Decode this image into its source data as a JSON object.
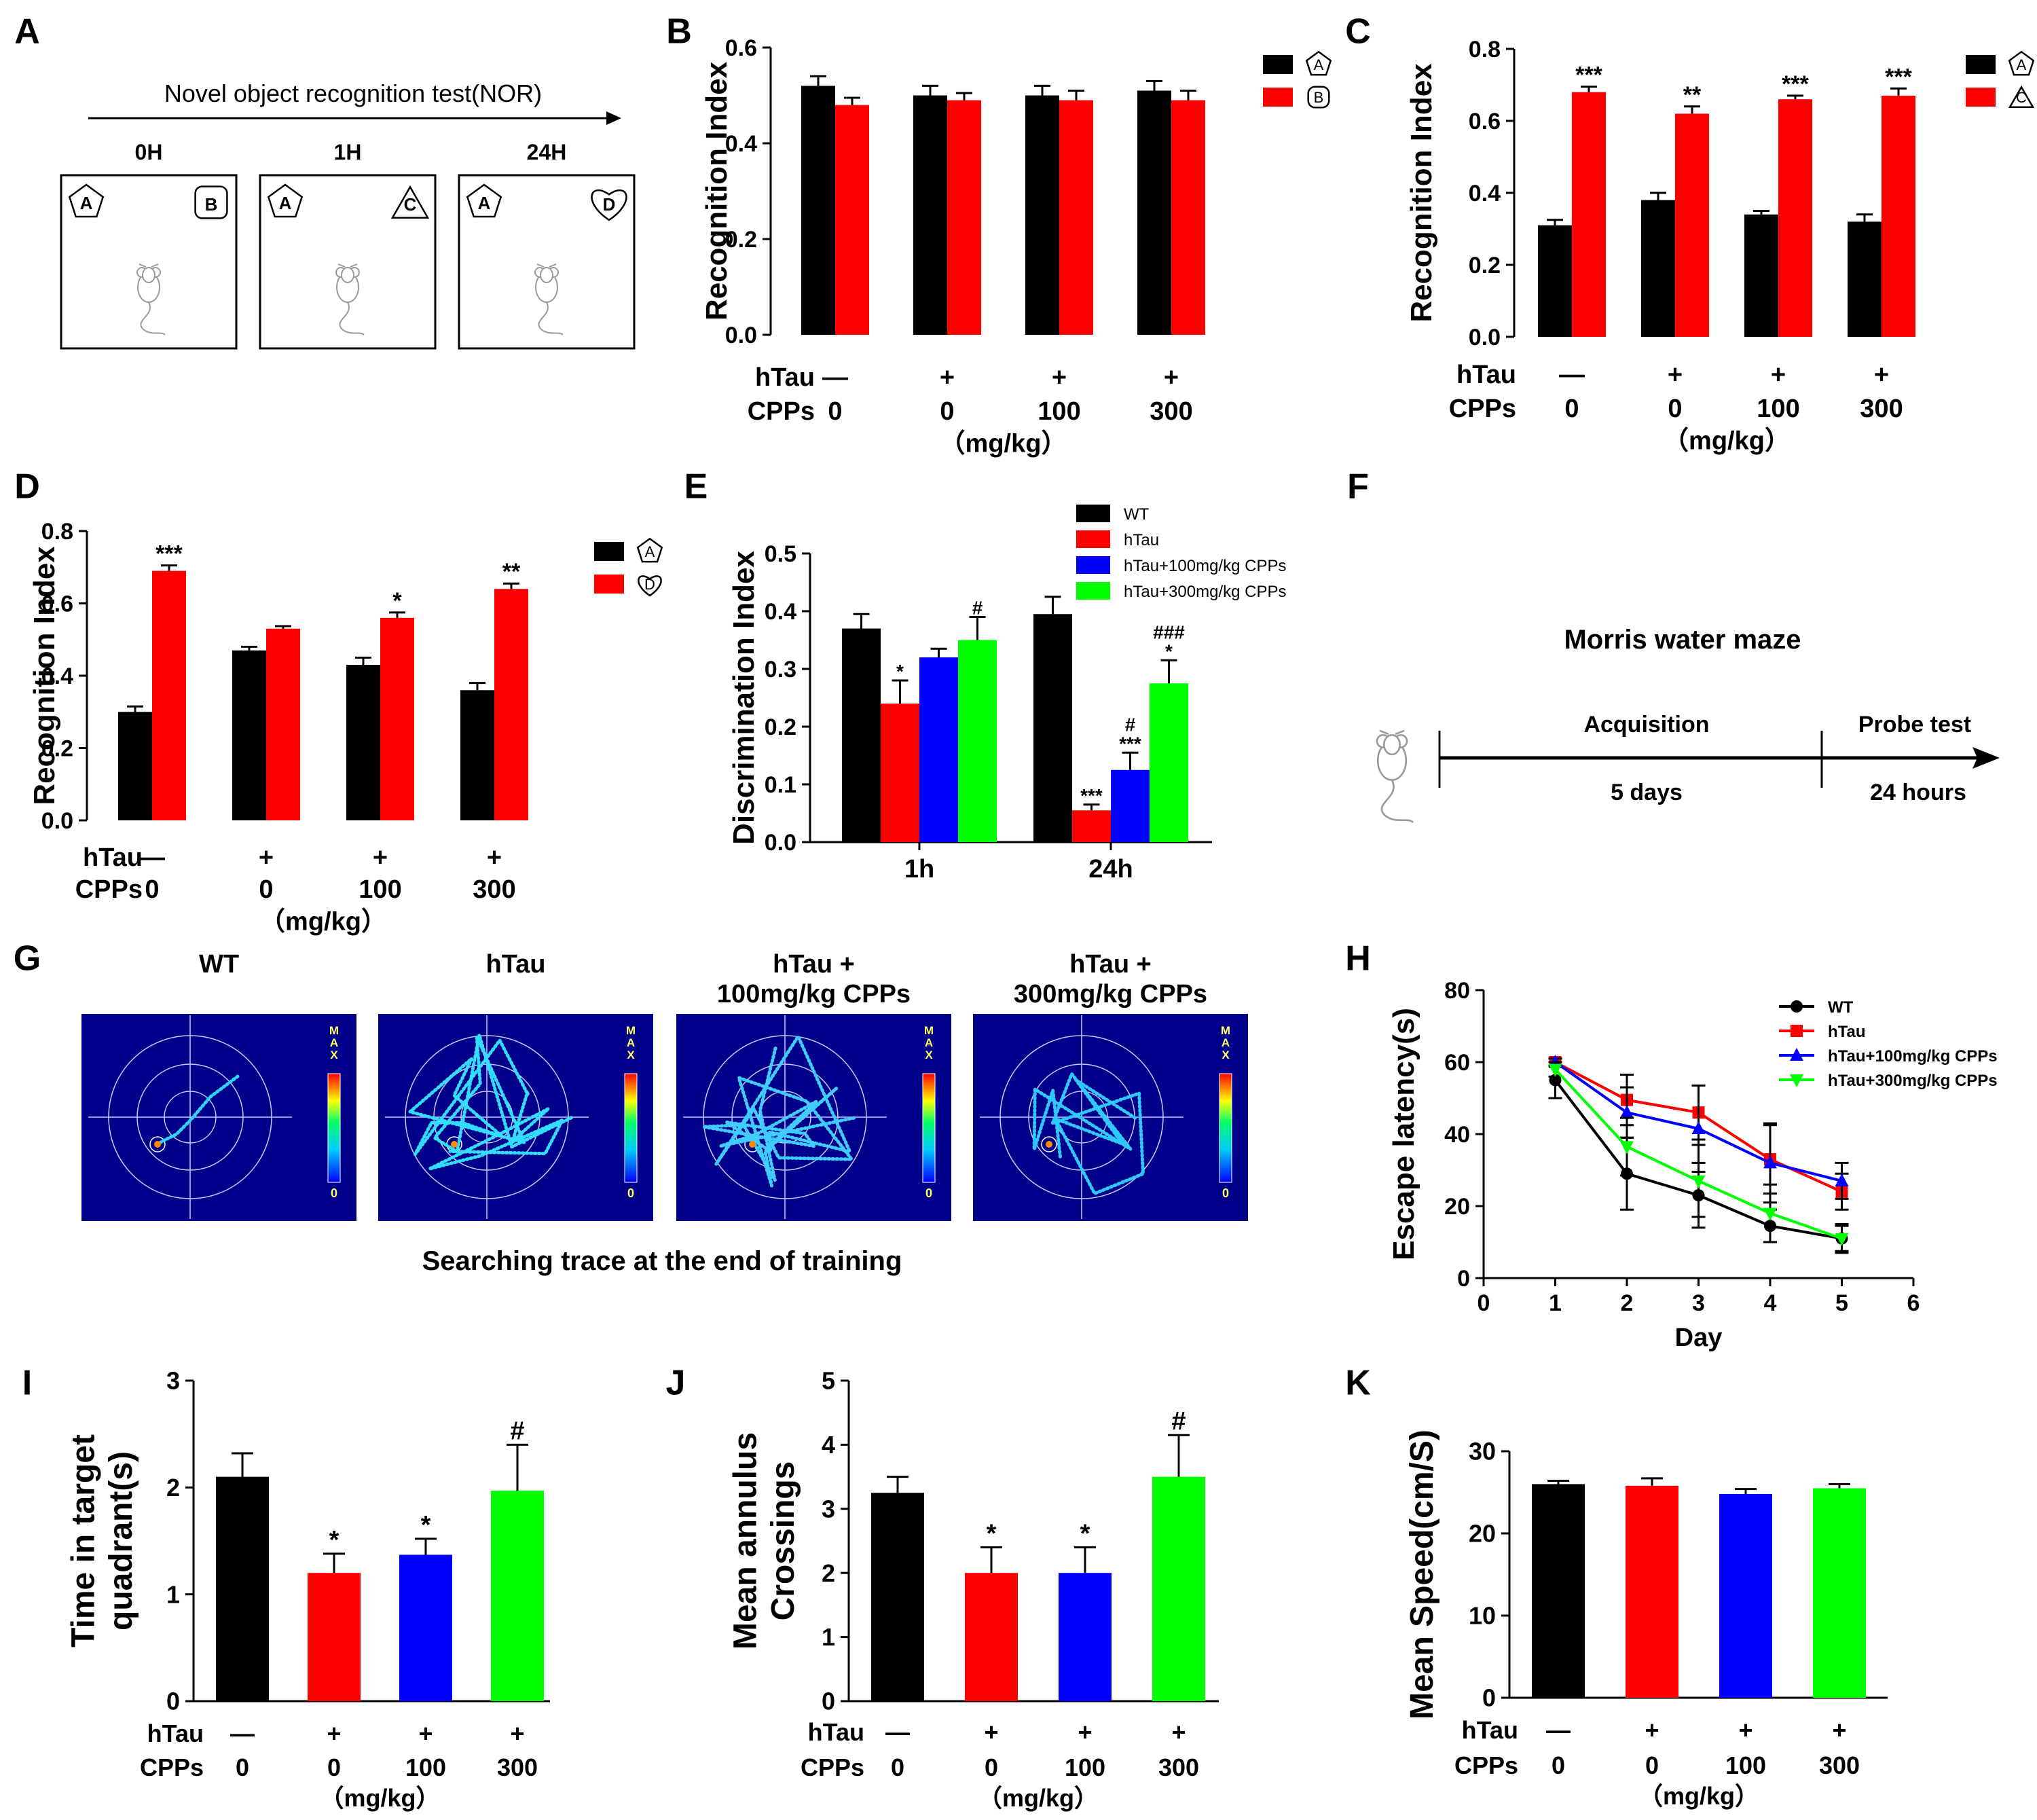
{
  "panel_letters": [
    "A",
    "B",
    "C",
    "D",
    "E",
    "F",
    "G",
    "H",
    "I",
    "J",
    "K"
  ],
  "colors": {
    "black": "#000000",
    "red": "#ff0000",
    "blue": "#0000ff",
    "green": "#00ff00",
    "arena": "#00008b"
  },
  "nor": {
    "title": "Novel object recognition test(NOR)",
    "boxes": [
      {
        "time": "0H",
        "left": "A",
        "right": "B"
      },
      {
        "time": "1H",
        "left": "A",
        "right": "C"
      },
      {
        "time": "24H",
        "left": "A",
        "right": "D"
      }
    ]
  },
  "mwm": {
    "title": "Morris water maze",
    "stage1": "Acquisition",
    "stage1_dur": "5 days",
    "stage2": "Probe test",
    "stage2_dur": "24 hours"
  },
  "traces": {
    "groups": [
      "WT",
      "hTau",
      "hTau +\n100mg/kg CPPs",
      "hTau +\n300mg/kg CPPs"
    ],
    "scale_top": "M\nA\nX",
    "scale_bottom": "0",
    "caption": "Searching trace at the end of training"
  },
  "group_table": {
    "rows": [
      "hTau",
      "CPPs"
    ],
    "htau": [
      "—",
      "+",
      "+",
      "+"
    ],
    "cpps": [
      "0",
      "0",
      "100",
      "300"
    ],
    "unit": "（mg/kg）"
  },
  "chart_data": [
    {
      "id": "B",
      "type": "bar",
      "ylabel": "Recognition Index",
      "ylim": [
        0,
        0.6
      ],
      "yticks": [
        "0.0",
        "0.2",
        "0.4",
        "0.6"
      ],
      "categories": [
        "0",
        "0",
        "100",
        "300"
      ],
      "series": [
        {
          "name": "A",
          "values": [
            0.52,
            0.5,
            0.5,
            0.51
          ],
          "errors": [
            0.02,
            0.02,
            0.02,
            0.02
          ]
        },
        {
          "name": "B",
          "values": [
            0.48,
            0.49,
            0.49,
            0.49
          ],
          "errors": [
            0.015,
            0.015,
            0.02,
            0.02
          ]
        }
      ],
      "annotations": [
        [
          "",
          ""
        ],
        [
          "",
          ""
        ],
        [
          "",
          ""
        ],
        [
          "",
          ""
        ]
      ],
      "legend": [
        "A",
        "B"
      ],
      "show_unit": true
    },
    {
      "id": "C",
      "type": "bar",
      "ylabel": "Recognition Index",
      "ylim": [
        0,
        0.8
      ],
      "yticks": [
        "0.0",
        "0.2",
        "0.4",
        "0.6",
        "0.8"
      ],
      "categories": [
        "0",
        "0",
        "100",
        "300"
      ],
      "series": [
        {
          "name": "A",
          "values": [
            0.31,
            0.38,
            0.34,
            0.32
          ],
          "errors": [
            0.015,
            0.02,
            0.01,
            0.02
          ]
        },
        {
          "name": "C",
          "values": [
            0.68,
            0.62,
            0.66,
            0.67
          ],
          "errors": [
            0.015,
            0.02,
            0.01,
            0.02
          ]
        }
      ],
      "annotations": [
        [
          "",
          "***"
        ],
        [
          "",
          "**"
        ],
        [
          "",
          "***"
        ],
        [
          "",
          "***"
        ]
      ],
      "legend": [
        "A",
        "C"
      ],
      "show_unit": true
    },
    {
      "id": "D",
      "type": "bar",
      "ylabel": "Recognition Index",
      "ylim": [
        0,
        0.8
      ],
      "yticks": [
        "0.0",
        "0.2",
        "0.4",
        "0.6",
        "0.8"
      ],
      "categories": [
        "0",
        "0",
        "100",
        "300"
      ],
      "series": [
        {
          "name": "A",
          "values": [
            0.3,
            0.47,
            0.43,
            0.36
          ],
          "errors": [
            0.015,
            0.01,
            0.02,
            0.02
          ]
        },
        {
          "name": "D",
          "values": [
            0.69,
            0.53,
            0.56,
            0.64
          ],
          "errors": [
            0.015,
            0.007,
            0.015,
            0.015
          ]
        }
      ],
      "annotations": [
        [
          "",
          "***"
        ],
        [
          "",
          ""
        ],
        [
          "",
          "*"
        ],
        [
          "",
          "**"
        ]
      ],
      "legend": [
        "A",
        "D"
      ],
      "show_unit": true
    },
    {
      "id": "E",
      "type": "bar",
      "ylabel": "Discrimination Index",
      "ylim": [
        0,
        0.5
      ],
      "yticks": [
        "0.0",
        "0.1",
        "0.2",
        "0.3",
        "0.4",
        "0.5"
      ],
      "categories": [
        "1h",
        "24h"
      ],
      "series": [
        {
          "name": "WT",
          "values": [
            0.37,
            0.395
          ],
          "errors": [
            0.025,
            0.03
          ]
        },
        {
          "name": "hTau",
          "values": [
            0.24,
            0.055
          ],
          "errors": [
            0.04,
            0.01
          ]
        },
        {
          "name": "hTau+100mg/kg  CPPs",
          "values": [
            0.32,
            0.125
          ],
          "errors": [
            0.015,
            0.03
          ]
        },
        {
          "name": "hTau+300mg/kg  CPPs",
          "values": [
            0.35,
            0.275
          ],
          "errors": [
            0.04,
            0.04
          ]
        }
      ],
      "annotations": [
        [
          "",
          "*",
          "",
          "#"
        ],
        [
          "",
          "***",
          "#\n***",
          "###\n*"
        ]
      ]
    },
    {
      "id": "H",
      "type": "line",
      "xlabel": "Day",
      "ylabel": "Escape latency(s)",
      "xlim": [
        0,
        6
      ],
      "ylim": [
        0,
        80
      ],
      "xticks": [
        "0",
        "1",
        "2",
        "3",
        "4",
        "5",
        "6"
      ],
      "yticks": [
        "0",
        "20",
        "40",
        "60",
        "80"
      ],
      "x": [
        1,
        2,
        3,
        4,
        5
      ],
      "series": [
        {
          "name": "WT",
          "marker": "circle",
          "values": [
            55,
            29,
            23,
            14.5,
            11
          ],
          "errors": [
            5,
            10,
            9,
            4.5,
            3.5
          ]
        },
        {
          "name": "hTau",
          "marker": "square",
          "values": [
            60,
            49.5,
            46,
            33,
            24
          ],
          "errors": [
            1,
            7,
            7.5,
            9.5,
            5
          ]
        },
        {
          "name": "hTau+100mg/kg CPPs",
          "marker": "triangle",
          "values": [
            60,
            46,
            41.5,
            32,
            27
          ],
          "errors": [
            1,
            7,
            12,
            11,
            5
          ]
        },
        {
          "name": "hTau+300mg/kg CPPs",
          "marker": "triangle-down",
          "values": [
            58,
            36.5,
            27,
            18,
            11
          ],
          "errors": [
            2,
            8,
            10,
            8,
            4
          ]
        }
      ]
    },
    {
      "id": "I",
      "type": "bar",
      "ylabel": "Time in target\nquadrant(s)",
      "ylim": [
        0,
        3
      ],
      "yticks": [
        "0",
        "1",
        "2",
        "3"
      ],
      "categories": [
        "0",
        "0",
        "100",
        "300"
      ],
      "values": [
        2.1,
        1.2,
        1.37,
        1.97
      ],
      "errors": [
        0.22,
        0.18,
        0.15,
        0.43
      ],
      "annotations": [
        "",
        "*",
        "*",
        "#"
      ],
      "show_unit": true
    },
    {
      "id": "J",
      "type": "bar",
      "ylabel": "Mean annulus\nCrossings",
      "ylim": [
        0,
        5
      ],
      "yticks": [
        "0",
        "1",
        "2",
        "3",
        "4",
        "5"
      ],
      "categories": [
        "0",
        "0",
        "100",
        "300"
      ],
      "values": [
        3.25,
        2.0,
        2.0,
        3.5
      ],
      "errors": [
        0.25,
        0.4,
        0.4,
        0.65
      ],
      "annotations": [
        "",
        "*",
        "*",
        "#"
      ],
      "show_unit": true
    },
    {
      "id": "K",
      "type": "bar",
      "ylabel": "Mean Speed(cm/S)",
      "ylim": [
        0,
        30
      ],
      "yticks": [
        "0",
        "10",
        "20",
        "30"
      ],
      "categories": [
        "0",
        "0",
        "100",
        "300"
      ],
      "values": [
        26,
        25.8,
        24.8,
        25.5
      ],
      "errors": [
        0.4,
        0.9,
        0.6,
        0.5
      ],
      "annotations": [
        "",
        "",
        "",
        ""
      ],
      "show_unit": true
    }
  ]
}
